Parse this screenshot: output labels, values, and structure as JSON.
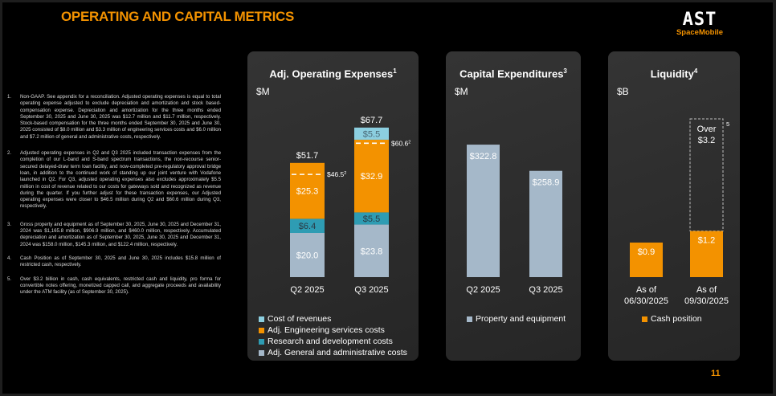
{
  "slide": {
    "title": "OPERATING AND CAPITAL METRICS",
    "logo": {
      "main": "AST",
      "sub": "SpaceMobile"
    },
    "page_number": "11",
    "colors": {
      "accent": "#f39200",
      "gray_bar": "#a5b8c9",
      "teal": "#2e9cb3",
      "light_blue": "#8ccfe0"
    }
  },
  "footnotes": [
    {
      "num": "1.",
      "text": "Non-GAAP. See appendix for a reconciliation. Adjusted operating expenses is equal to total operating expense adjusted to exclude depreciation and amortization and stock based-compensation expense. Depreciation and amortization for the three months ended September 30, 2025 and June 30, 2025 was $12.7 million and $11.7 million, respectively. Stock-based compensation for the three months ended September 30, 2025 and June 30, 2025 consisted of $8.0 million and $3.3 million of engineering services costs and $6.0 million and $7.2 million of general and administrative costs, respectively."
    },
    {
      "num": "2.",
      "text": "Adjusted operating expenses in Q2 and Q3 2025 included transaction expenses from the completion of our L-band and S-band spectrum transactions, the non-recourse senior-secured delayed-draw term loan facility, and now-completed pre-regulatory approval bridge loan, in addition to the continued work of standing up our joint venture with Vodafone launched in Q2. For Q3, adjusted operating expenses also excludes approximately $5.5 million in cost of revenue related to our costs for gateways sold and recognized as revenue during the quarter. If you further adjust for these transaction expenses, our Adjusted operating expenses were closer to $46.5 million during Q2 and $60.6 million during Q3, respectively."
    },
    {
      "num": "3.",
      "text": "Gross property and equipment as of September 30, 2025, June 30, 2025 and December 31, 2024 was $1,165.8 million, $906.9 million, and $460.0 million, respectively. Accumulated depreciation and amortization as of September 30, 2025, June 30, 2025 and December 31, 2024 was $158.0 million, $145.3 million, and $122.4 million, respectively."
    },
    {
      "num": "4.",
      "text": "Cash Position as of September 30, 2025 and June 30, 2025 includes $15.8 million of restricted cash, respectively."
    },
    {
      "num": "5.",
      "text": "Over $3.2 billion in cash, cash equivalents, restricted cash and liquidity, pro forma for convertible notes offering, monetized capped call, and aggregate proceeds and availability under the ATM facility (as of September 30, 2025)."
    }
  ],
  "chart_data": [
    {
      "type": "bar",
      "stacked": true,
      "title": "Adj. Operating Expenses",
      "title_footnote": "1",
      "ylabel": "$M",
      "categories": [
        "Q2 2025",
        "Q3 2025"
      ],
      "series": [
        {
          "name": "Adj. General and administrative costs",
          "color": "#a5b8c9",
          "values": [
            20.0,
            23.8
          ],
          "labels": [
            "$20.0",
            "$23.8"
          ]
        },
        {
          "name": "Research and development costs",
          "color": "#2e9cb3",
          "values": [
            6.4,
            5.5
          ],
          "labels": [
            "$6.4",
            "$5.5"
          ]
        },
        {
          "name": "Adj. Engineering services costs",
          "color": "#f39200",
          "values": [
            25.3,
            32.9
          ],
          "labels": [
            "$25.3",
            "$32.9"
          ]
        },
        {
          "name": "Cost of revenues",
          "color": "#8ccfe0",
          "values": [
            0,
            5.5
          ],
          "labels": [
            "",
            "$5.5"
          ]
        }
      ],
      "totals": [
        "$51.7",
        "$67.7"
      ],
      "adjusted_markers": [
        {
          "value": 46.5,
          "label": "$46.5",
          "footnote": "2"
        },
        {
          "value": 60.6,
          "label": "$60.6",
          "footnote": "2"
        }
      ],
      "legend": [
        "Cost of revenues",
        "Adj. Engineering services costs",
        "Research and development costs",
        "Adj. General and administrative costs"
      ],
      "legend_colors": [
        "#8ccfe0",
        "#f39200",
        "#2e9cb3",
        "#a5b8c9"
      ],
      "legend_position": "bottom-left"
    },
    {
      "type": "bar",
      "title": "Capital Expenditures",
      "title_footnote": "3",
      "ylabel": "$M",
      "categories": [
        "Q2 2025",
        "Q3 2025"
      ],
      "series": [
        {
          "name": "Property and equipment",
          "color": "#a5b8c9",
          "values": [
            322.8,
            258.9
          ],
          "labels": [
            "$322.8",
            "$258.9"
          ]
        }
      ],
      "legend": [
        "Property and equipment"
      ],
      "legend_colors": [
        "#a5b8c9"
      ],
      "legend_position": "bottom-left"
    },
    {
      "type": "bar",
      "title": "Liquidity",
      "title_footnote": "4",
      "ylabel": "$B",
      "categories": [
        "As of 06/30/2025",
        "As of 09/30/2025"
      ],
      "category_lines": [
        [
          "As of",
          "06/30/2025"
        ],
        [
          "As of",
          "09/30/2025"
        ]
      ],
      "series": [
        {
          "name": "Cash position",
          "color": "#f39200",
          "values": [
            0.9,
            1.2
          ],
          "labels": [
            "$0.9",
            "$1.2"
          ]
        }
      ],
      "pro_forma": {
        "category_index": 1,
        "value": 3.2,
        "label_lines": [
          "Over",
          "$3.2"
        ],
        "footnote": "5",
        "style": "dashed-outline"
      },
      "legend": [
        "Cash position"
      ],
      "legend_colors": [
        "#f39200"
      ],
      "legend_position": "bottom-center"
    }
  ]
}
